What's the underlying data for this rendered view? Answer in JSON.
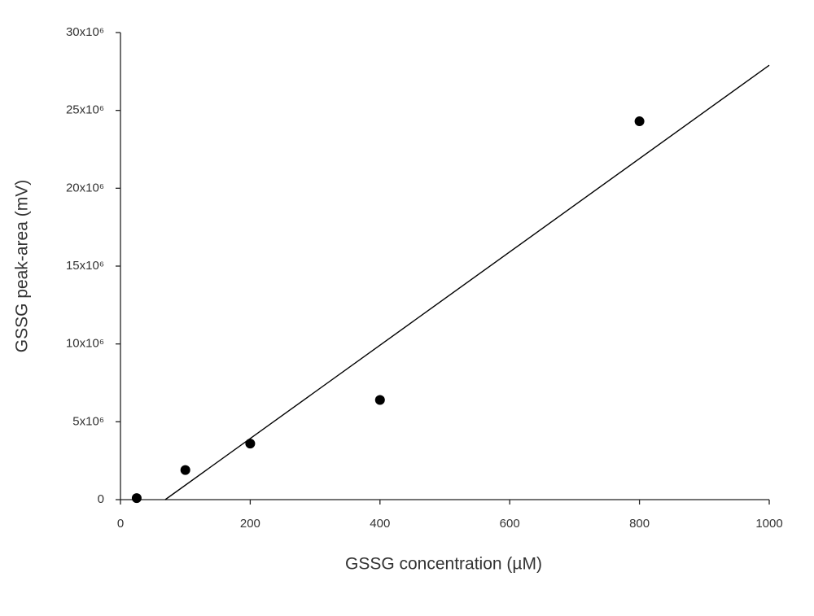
{
  "chart_data": {
    "type": "scatter",
    "xlabel": "GSSG concentration (µM)",
    "ylabel": "GSSG peak-area (mV)",
    "series": [
      {
        "type": "scatter",
        "color": "#000000",
        "x": [
          25,
          100,
          200,
          400,
          800
        ],
        "values": [
          100000,
          1900000,
          3600000,
          6400000,
          24300000
        ]
      },
      {
        "type": "line",
        "color": "#000000",
        "x": [
          69,
          1000
        ],
        "values": [
          0,
          27900000
        ]
      }
    ],
    "xlim": [
      0,
      1000
    ],
    "xticks": [
      0,
      200,
      400,
      600,
      800,
      1000
    ],
    "ylim": [
      0,
      30000000
    ],
    "yticks": [
      0,
      {
        "value": 5000000,
        "label": "5x10⁶"
      },
      {
        "value": 10000000,
        "label": "10x10⁶"
      },
      {
        "value": 15000000,
        "label": "15x10⁶"
      },
      {
        "value": 20000000,
        "label": "20x10⁶"
      },
      {
        "value": 25000000,
        "label": "25x10⁶"
      },
      {
        "value": 30000000,
        "label": "30x10⁶"
      }
    ],
    "grid": false
  }
}
